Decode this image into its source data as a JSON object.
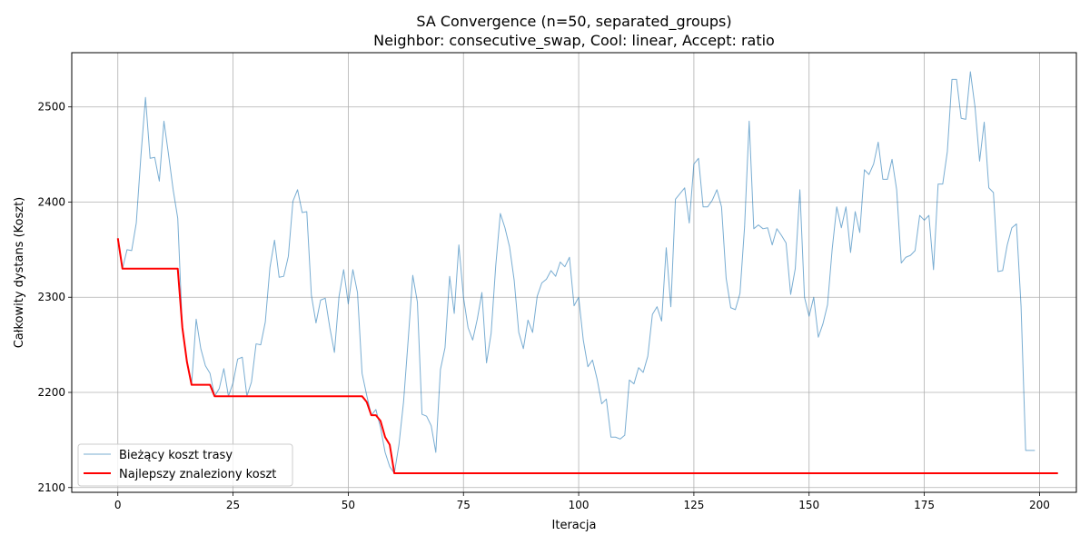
{
  "chart_data": {
    "type": "line",
    "title": "SA Convergence (n=50, separated_groups)",
    "subtitle": "Neighbor: consecutive_swap, Cool: linear, Accept: ratio",
    "xlabel": "Iteracja",
    "ylabel": "Całkowity dystans (Koszt)",
    "xlim": [
      -10,
      208
    ],
    "ylim": [
      2095,
      2557
    ],
    "xticks": [
      0,
      25,
      50,
      75,
      100,
      125,
      150,
      175,
      200
    ],
    "yticks": [
      2100,
      2200,
      2300,
      2400,
      2500
    ],
    "grid": true,
    "legend_position": "lower-left",
    "series": [
      {
        "name": "Bieżący koszt trasy",
        "color": "#1f77b4",
        "values": [
          2362,
          2330,
          2350,
          2349,
          2378,
          2448,
          2510,
          2446,
          2447,
          2422,
          2485,
          2450,
          2413,
          2383,
          2268,
          2232,
          2208,
          2277,
          2246,
          2228,
          2220,
          2196,
          2204,
          2225,
          2196,
          2210,
          2235,
          2237,
          2196,
          2211,
          2251,
          2250,
          2274,
          2331,
          2360,
          2321,
          2322,
          2343,
          2401,
          2413,
          2389,
          2390,
          2302,
          2273,
          2297,
          2299,
          2268,
          2242,
          2301,
          2329,
          2293,
          2329,
          2305,
          2220,
          2197,
          2176,
          2182,
          2163,
          2137,
          2122,
          2115,
          2145,
          2190,
          2255,
          2323,
          2295,
          2177,
          2175,
          2165,
          2137,
          2224,
          2247,
          2322,
          2283,
          2355,
          2300,
          2268,
          2255,
          2277,
          2305,
          2231,
          2262,
          2333,
          2388,
          2373,
          2353,
          2318,
          2263,
          2246,
          2276,
          2263,
          2301,
          2315,
          2319,
          2328,
          2322,
          2337,
          2332,
          2342,
          2291,
          2300,
          2255,
          2227,
          2234,
          2214,
          2188,
          2193,
          2153,
          2153,
          2151,
          2155,
          2213,
          2209,
          2226,
          2221,
          2238,
          2282,
          2290,
          2275,
          2352,
          2290,
          2403,
          2409,
          2415,
          2378,
          2440,
          2446,
          2395,
          2395,
          2402,
          2413,
          2395,
          2320,
          2289,
          2287,
          2304,
          2374,
          2485,
          2372,
          2376,
          2372,
          2373,
          2355,
          2372,
          2365,
          2357,
          2303,
          2330,
          2413,
          2300,
          2280,
          2300,
          2258,
          2272,
          2292,
          2350,
          2395,
          2373,
          2395,
          2347,
          2390,
          2368,
          2434,
          2429,
          2440,
          2463,
          2424,
          2424,
          2445,
          2413,
          2336,
          2342,
          2344,
          2349,
          2386,
          2381,
          2386,
          2329,
          2419,
          2419,
          2453,
          2529,
          2529,
          2488,
          2487,
          2537,
          2500,
          2443,
          2484,
          2415,
          2410,
          2327,
          2328,
          2355,
          2373,
          2377,
          2290,
          2139,
          2139,
          2139
        ]
      },
      {
        "name": "Najlepszy znaleziony koszt",
        "color": "#ff0000",
        "values": [
          2362,
          2330,
          2330,
          2330,
          2330,
          2330,
          2330,
          2330,
          2330,
          2330,
          2330,
          2330,
          2330,
          2330,
          2268,
          2232,
          2208,
          2208,
          2208,
          2208,
          2208,
          2196,
          2196,
          2196,
          2196,
          2196,
          2196,
          2196,
          2196,
          2196,
          2196,
          2196,
          2196,
          2196,
          2196,
          2196,
          2196,
          2196,
          2196,
          2196,
          2196,
          2196,
          2196,
          2196,
          2196,
          2196,
          2196,
          2196,
          2196,
          2196,
          2196,
          2196,
          2196,
          2196,
          2190,
          2176,
          2176,
          2170,
          2153,
          2145,
          2115,
          2115,
          2115,
          2115,
          2115,
          2115,
          2115,
          2115,
          2115,
          2115,
          2115,
          2115,
          2115,
          2115,
          2115,
          2115,
          2115,
          2115,
          2115,
          2115,
          2115,
          2115,
          2115,
          2115,
          2115,
          2115,
          2115,
          2115,
          2115,
          2115,
          2115,
          2115,
          2115,
          2115,
          2115,
          2115,
          2115,
          2115,
          2115,
          2115,
          2115,
          2115,
          2115,
          2115,
          2115,
          2115,
          2115,
          2115,
          2115,
          2115,
          2115,
          2115,
          2115,
          2115,
          2115,
          2115,
          2115,
          2115,
          2115,
          2115,
          2115,
          2115,
          2115,
          2115,
          2115,
          2115,
          2115,
          2115,
          2115,
          2115,
          2115,
          2115,
          2115,
          2115,
          2115,
          2115,
          2115,
          2115,
          2115,
          2115,
          2115,
          2115,
          2115,
          2115,
          2115,
          2115,
          2115,
          2115,
          2115,
          2115,
          2115,
          2115,
          2115,
          2115,
          2115,
          2115,
          2115,
          2115,
          2115,
          2115,
          2115,
          2115,
          2115,
          2115,
          2115,
          2115,
          2115,
          2115,
          2115,
          2115,
          2115,
          2115,
          2115,
          2115,
          2115,
          2115,
          2115,
          2115,
          2115,
          2115,
          2115,
          2115,
          2115,
          2115,
          2115,
          2115,
          2115,
          2115,
          2115,
          2115,
          2115,
          2115,
          2115,
          2115,
          2115,
          2115,
          2115,
          2115,
          2115,
          2115,
          2115,
          2115,
          2115,
          2115,
          2115
        ]
      }
    ]
  }
}
